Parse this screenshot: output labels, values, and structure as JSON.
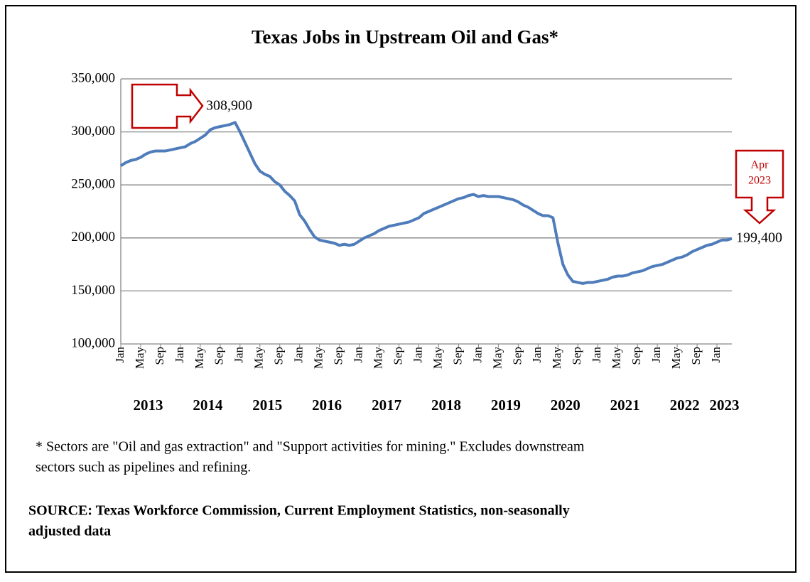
{
  "chart_data": {
    "type": "line",
    "title": "Texas Jobs in Upstream Oil and Gas*",
    "categories": [
      "Jan",
      null,
      null,
      null,
      "May",
      null,
      null,
      null,
      "Sep",
      null,
      null,
      null,
      "Jan",
      null,
      null,
      null,
      "May",
      null,
      null,
      null,
      "Sep",
      null,
      null,
      null,
      "Jan",
      null,
      null,
      null,
      "May",
      null,
      null,
      null,
      "Sep",
      null,
      null,
      null,
      "Jan",
      null,
      null,
      null,
      "May",
      null,
      null,
      null,
      "Sep",
      null,
      null,
      null,
      "Jan",
      null,
      null,
      null,
      "May",
      null,
      null,
      null,
      "Sep",
      null,
      null,
      null,
      "Jan",
      null,
      null,
      null,
      "May",
      null,
      null,
      null,
      "Sep",
      null,
      null,
      null,
      "Jan",
      null,
      null,
      null,
      "May",
      null,
      null,
      null,
      "Sep",
      null,
      null,
      null,
      "Jan",
      null,
      null,
      null,
      "May",
      null,
      null,
      null,
      "Sep",
      null,
      null,
      null,
      "Jan",
      null,
      null,
      null,
      "May",
      null,
      null,
      null,
      "Sep",
      null,
      null,
      null,
      "Jan",
      null,
      null,
      null,
      "May",
      null,
      null,
      null,
      "Sep",
      null,
      null,
      null,
      "Jan",
      null,
      null,
      null
    ],
    "year_labels": [
      "2013",
      "2014",
      "2015",
      "2016",
      "2017",
      "2018",
      "2019",
      "2020",
      "2021",
      "2022",
      "2023"
    ],
    "series": [
      {
        "color": "#4f7cba",
        "values": [
          268000,
          271000,
          273000,
          274000,
          276000,
          279000,
          281000,
          282000,
          282000,
          282000,
          283000,
          284000,
          285000,
          286000,
          289000,
          291000,
          294000,
          297000,
          302000,
          304000,
          305000,
          306000,
          307000,
          308900,
          300000,
          290000,
          280000,
          270000,
          263000,
          260000,
          258000,
          253000,
          250000,
          244000,
          240000,
          235000,
          222000,
          216000,
          208000,
          201000,
          198000,
          197000,
          196000,
          195000,
          193000,
          194000,
          193000,
          194000,
          197000,
          200000,
          202000,
          204000,
          207000,
          209000,
          211000,
          212000,
          213000,
          214000,
          215000,
          217000,
          219000,
          223000,
          225000,
          227000,
          229000,
          231000,
          233000,
          235000,
          237000,
          238000,
          240000,
          241000,
          239000,
          240000,
          239000,
          239000,
          239000,
          238000,
          237000,
          236000,
          234000,
          231000,
          229000,
          226000,
          223000,
          221000,
          221000,
          219000,
          195000,
          175000,
          165000,
          159000,
          158000,
          157000,
          158000,
          158000,
          159000,
          160000,
          161000,
          163000,
          164000,
          164000,
          165000,
          167000,
          168000,
          169000,
          171000,
          173000,
          174000,
          175000,
          177000,
          179000,
          181000,
          182000,
          184000,
          187000,
          189000,
          191000,
          193000,
          194000,
          196000,
          198000,
          198000,
          199400
        ],
        "value_labels": [
          null,
          null,
          null,
          null,
          null,
          null,
          null,
          null,
          null,
          null,
          null,
          null,
          null,
          null,
          null,
          null,
          null,
          null,
          null,
          null,
          null,
          null,
          null,
          "308,900",
          null,
          null,
          null,
          null,
          null,
          null,
          null,
          null,
          null,
          null,
          null,
          null,
          null,
          null,
          null,
          null,
          null,
          null,
          null,
          null,
          null,
          null,
          null,
          null,
          null,
          null,
          null,
          null,
          null,
          null,
          null,
          null,
          null,
          null,
          null,
          null,
          null,
          null,
          null,
          null,
          null,
          null,
          null,
          null,
          null,
          null,
          null,
          null,
          null,
          null,
          null,
          null,
          null,
          null,
          null,
          null,
          null,
          null,
          null,
          null,
          null,
          null,
          null,
          null,
          null,
          null,
          null,
          null,
          null,
          null,
          null,
          null,
          null,
          null,
          null,
          null,
          null,
          null,
          null,
          null,
          null,
          null,
          null,
          null,
          null,
          null,
          null,
          null,
          null,
          null,
          null,
          null,
          null,
          null,
          null,
          null,
          null,
          null,
          null,
          "199,400"
        ]
      }
    ],
    "ylim": [
      100000,
      350000
    ],
    "yticks": [
      {
        "value": 100000,
        "label": "100,000"
      },
      {
        "value": 150000,
        "label": "150,000"
      },
      {
        "value": 200000,
        "label": "200,000"
      },
      {
        "value": 250000,
        "label": "250,000"
      },
      {
        "value": 300000,
        "label": "300,000"
      },
      {
        "value": 350000,
        "label": "350,000"
      }
    ],
    "grid": true,
    "callout": [
      "Apr",
      "2023"
    ],
    "footnote": [
      "* Sectors are \"Oil and gas extraction\" and \"Support activities for mining.\"  Excludes downstream",
      "sectors such as pipelines and refining."
    ],
    "source": [
      "SOURCE: Texas Workforce Commission, Current Employment Statistics, non-seasonally",
      "adjusted data"
    ]
  }
}
